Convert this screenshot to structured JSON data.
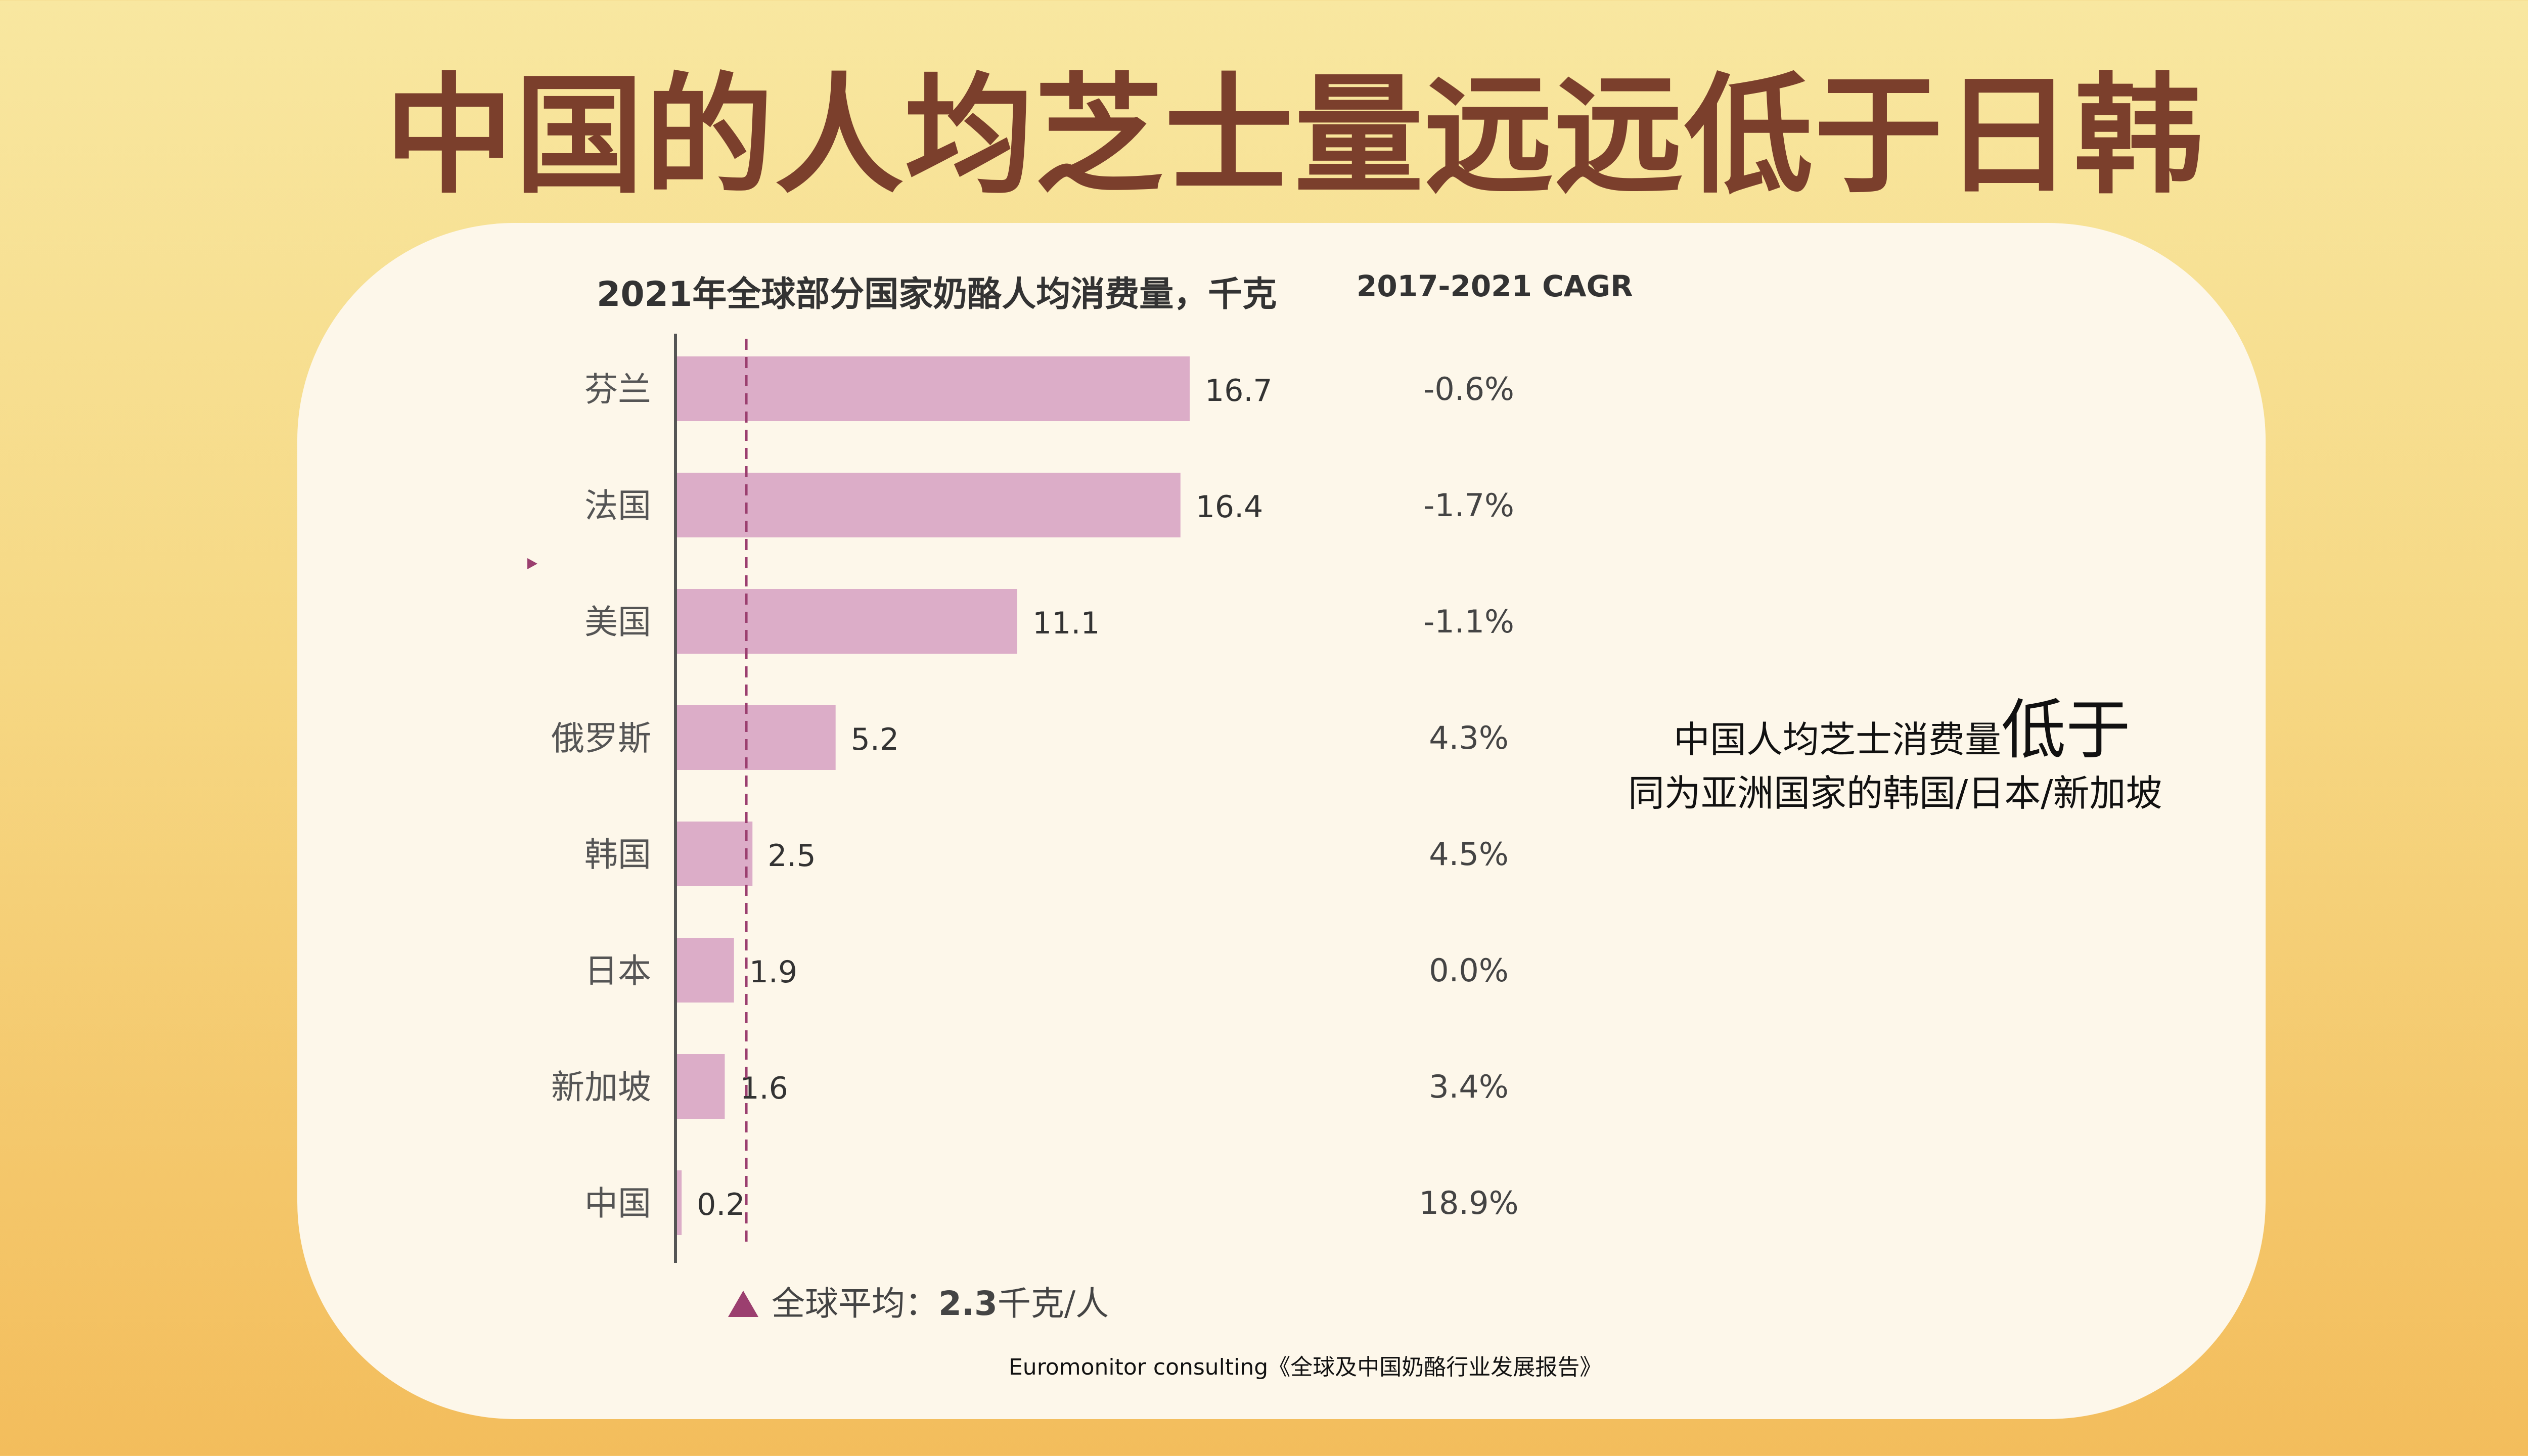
{
  "title": "中国的人均芝士量远远低于日韩",
  "chart_data": {
    "type": "bar",
    "orientation": "horizontal",
    "title": "2021年全球部分国家奶酪人均消费量，千克",
    "categories": [
      "芬兰",
      "法国",
      "美国",
      "俄罗斯",
      "韩国",
      "日本",
      "新加坡",
      "中国"
    ],
    "values": [
      16.7,
      16.4,
      11.1,
      5.2,
      2.5,
      1.9,
      1.6,
      0.2
    ],
    "value_labels": [
      "16.7",
      "16.4",
      "11.1",
      "5.2",
      "2.5",
      "1.9",
      "1.6",
      "0.2"
    ],
    "cagr_header": "2017-2021  CAGR",
    "cagr": [
      "-0.6%",
      "-1.7%",
      "-1.1%",
      "4.3%",
      "4.5%",
      "0.0%",
      "3.4%",
      "18.9%"
    ],
    "reference_line": {
      "value": 2.3,
      "label_prefix": "全球平均：",
      "label_value": "2.3",
      "label_unit": "千克/人"
    },
    "bar_color": "#dcadc8",
    "reference_color": "#9b3f6f"
  },
  "annotation": {
    "line1_prefix": "中国人均芝士消费量",
    "line1_emphasis": "低于",
    "line2": "同为亚洲国家的韩国/日本/新加坡"
  },
  "source": "Euromonitor consulting《全球及中国奶酪行业发展报告》"
}
